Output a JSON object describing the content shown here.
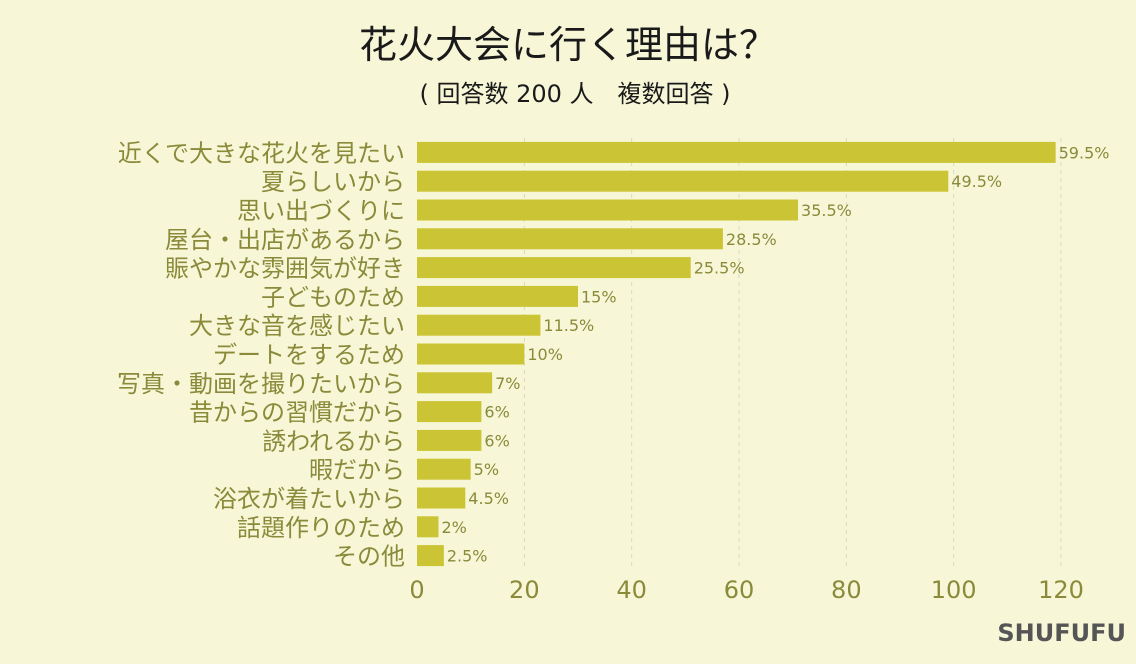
{
  "chart_data": {
    "type": "bar",
    "orientation": "horizontal",
    "title": "花火大会に行く理由は？",
    "subtitle": "( 回答数 200 人　複数回答 )",
    "categories": [
      "近くで大きな花火を見たい",
      "夏らしいから",
      "思い出づくりに",
      "屋台・出店があるから",
      "賑やかな雰囲気が好き",
      "子どものため",
      "大きな音を感じたい",
      "デートをするため",
      "写真・動画を撮りたいから",
      "昔からの習慣だから",
      "誘われるから",
      "暇だから",
      "浴衣が着たいから",
      "話題作りのため",
      "その他"
    ],
    "values": [
      119,
      99,
      71,
      57,
      51,
      30,
      23,
      20,
      14,
      12,
      12,
      10,
      9,
      4,
      5
    ],
    "value_labels": [
      "59.5%",
      "49.5%",
      "35.5%",
      "28.5%",
      "25.5%",
      "15%",
      "11.5%",
      "10%",
      "7%",
      "6%",
      "6%",
      "5%",
      "4.5%",
      "2%",
      "2.5%"
    ],
    "xlim": [
      0,
      120
    ],
    "xticks": [
      "0",
      "20",
      "40",
      "60",
      "80",
      "100",
      "120"
    ],
    "grid": true,
    "colors": {
      "bar": "#cbc434",
      "background": "#f7f7d8",
      "label": "#8a8a3a"
    }
  },
  "branding": {
    "text": "SHUFUFU"
  }
}
